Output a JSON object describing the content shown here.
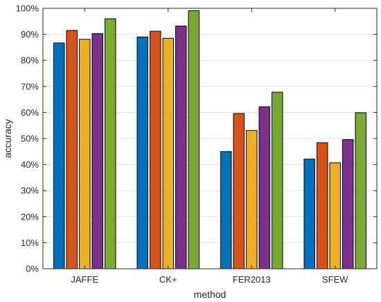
{
  "chart_data": {
    "type": "bar",
    "title": "",
    "xlabel": "method",
    "ylabel": "accuracy",
    "ylim": [
      0,
      100
    ],
    "yticks": [
      0,
      10,
      20,
      30,
      40,
      50,
      60,
      70,
      80,
      90,
      100
    ],
    "ytick_labels": [
      "0%",
      "10%",
      "20%",
      "30%",
      "40%",
      "50%",
      "60%",
      "70%",
      "80%",
      "90%",
      "100%"
    ],
    "categories": [
      "JAFFE",
      "CK+",
      "FER2013",
      "SFEW"
    ],
    "grid": true,
    "series": [
      {
        "color": "#0072BD",
        "values": [
          86.7,
          89.0,
          45.0,
          42.1
        ]
      },
      {
        "color": "#D95319",
        "values": [
          91.5,
          91.2,
          59.6,
          48.4
        ]
      },
      {
        "color": "#EDB120",
        "values": [
          88.1,
          88.5,
          53.1,
          40.7
        ]
      },
      {
        "color": "#7E2F8E",
        "values": [
          90.3,
          93.2,
          62.2,
          49.6
        ]
      },
      {
        "color": "#77AC30",
        "values": [
          96.0,
          99.1,
          67.8,
          59.9
        ]
      }
    ]
  }
}
